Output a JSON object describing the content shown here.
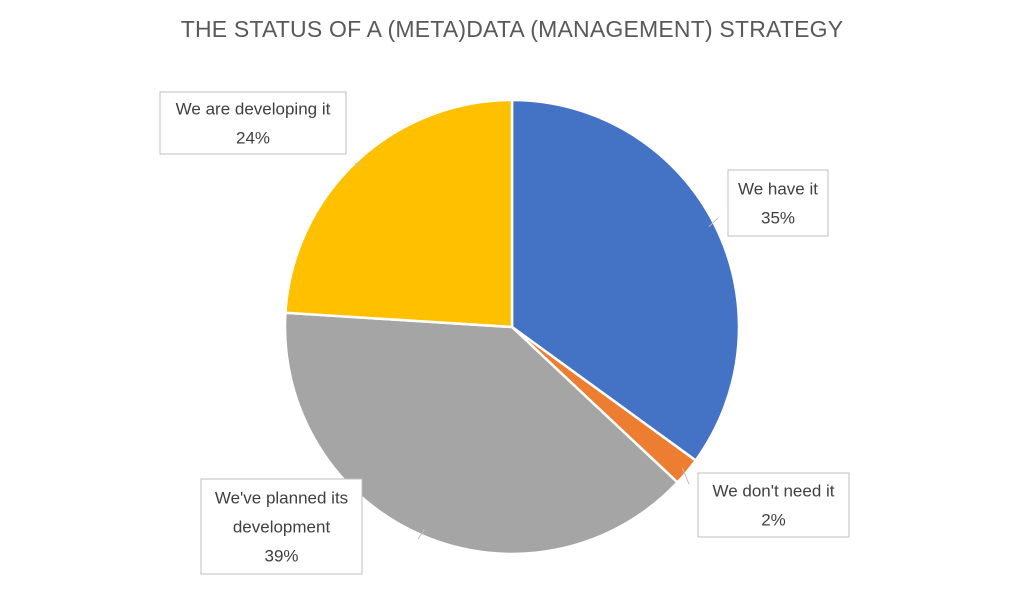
{
  "chart_data": {
    "type": "pie",
    "title": "THE STATUS OF A (META)DATA (MANAGEMENT) STRATEGY",
    "slices": [
      {
        "label": "We have it",
        "value": 35,
        "value_label": "35%",
        "color": "#4472C4"
      },
      {
        "label": "We don't need it",
        "value": 2,
        "value_label": "2%",
        "color": "#ED7D31"
      },
      {
        "label": "We've planned its development",
        "value": 39,
        "value_label": "39%",
        "color": "#A5A5A5"
      },
      {
        "label": "We are developing it",
        "value": 24,
        "value_label": "24%",
        "color": "#FFC000"
      }
    ],
    "start_angle_deg": 0,
    "direction": "clockwise",
    "legend": "none",
    "data_labels": "callouts"
  }
}
